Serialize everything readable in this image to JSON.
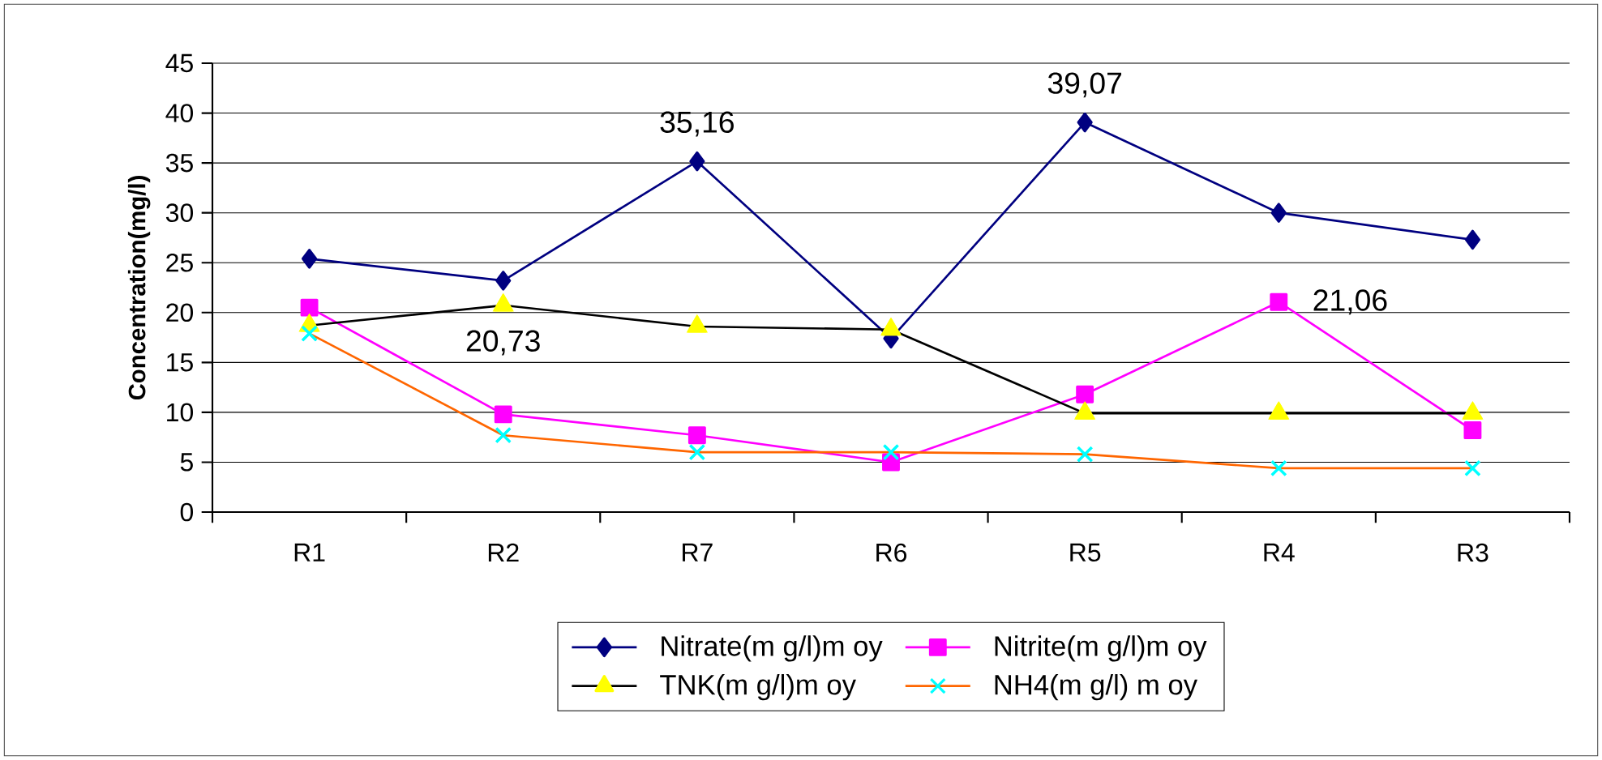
{
  "chart_data": {
    "type": "line",
    "ylabel": "Concentration(mg/l)",
    "categories": [
      "R1",
      "R2",
      "R7",
      "R6",
      "R5",
      "R4",
      "R3"
    ],
    "series": [
      {
        "name": "Nitrate(m g/l)m oy",
        "color": "#000080",
        "marker": "diamond",
        "values": [
          25.4,
          23.2,
          35.16,
          17.4,
          39.07,
          30.0,
          27.3
        ],
        "value_labels": [
          null,
          null,
          "35,16",
          null,
          "39,07",
          null,
          null
        ]
      },
      {
        "name": "Nitrite(m g/l)m oy",
        "color": "#ff00ff",
        "marker": "square",
        "values": [
          20.5,
          9.8,
          7.7,
          5.0,
          11.8,
          21.06,
          8.2
        ],
        "value_labels": [
          null,
          null,
          null,
          null,
          null,
          "21,06",
          null
        ]
      },
      {
        "name": "TNK(m g/l)m oy",
        "color": "#000000",
        "colors": [
          "#ffff00",
          "#ffff00",
          "#ffff00",
          "#ffff00",
          "#ffff00",
          "#ffff00",
          "#ffff00"
        ],
        "marker": "triangle",
        "values": [
          18.7,
          20.73,
          18.6,
          18.3,
          9.9,
          9.9,
          9.9
        ],
        "value_labels": [
          null,
          "20,73",
          null,
          null,
          null,
          null,
          null
        ]
      },
      {
        "name": "NH4(m g/l) m oy",
        "color": "#ff6600",
        "colors": [
          "#00ffff",
          "#00ffff",
          "#00ffff",
          "#00ffff",
          "#00ffff",
          "#00ffff",
          "#00ffff"
        ],
        "marker": "cross",
        "values": [
          17.9,
          7.7,
          6.0,
          6.0,
          5.8,
          4.4,
          4.4
        ]
      }
    ],
    "ylim": [
      0,
      45
    ],
    "yticks": [
      0,
      5,
      10,
      15,
      20,
      25,
      30,
      35,
      40,
      45
    ],
    "grid": "y",
    "legend": "bottom"
  }
}
